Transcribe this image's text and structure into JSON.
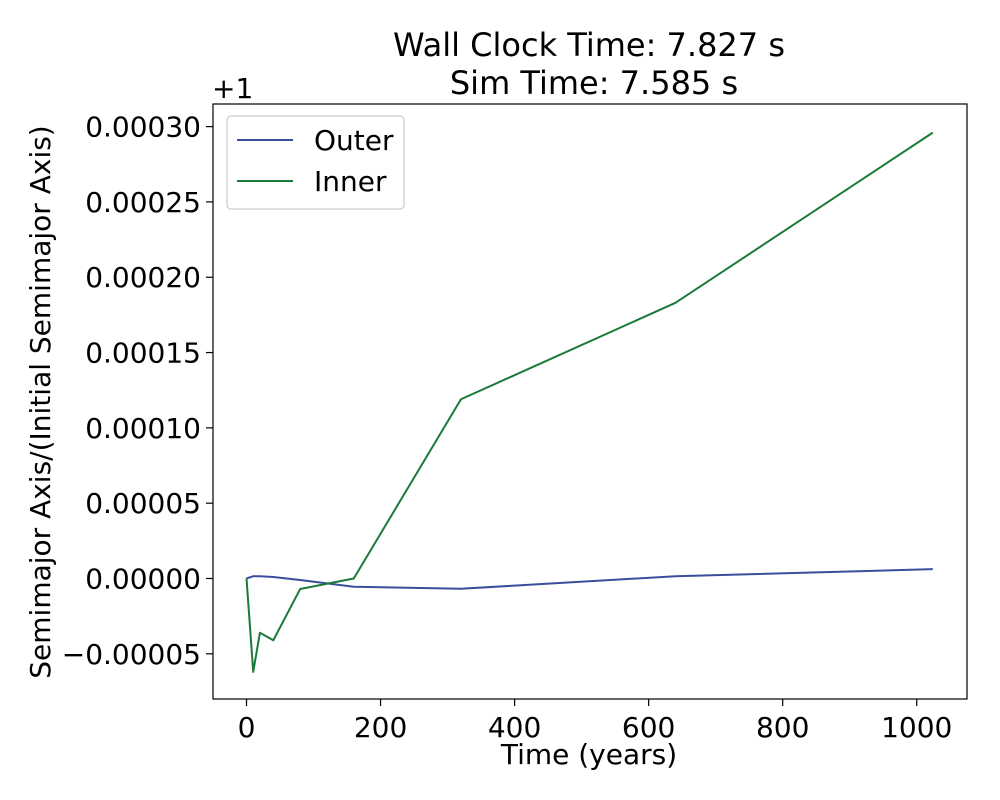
{
  "chart_data": {
    "type": "line",
    "title": [
      "Wall Clock Time: 7.827 s",
      "Sim Time: 7.585 s"
    ],
    "xlabel": "Time (years)",
    "ylabel": "Semimajor Axis/(Initial Semimajor Axis)",
    "y_offset_label": "+1",
    "xlim": [
      -50,
      1075
    ],
    "ylim": [
      -8e-05,
      0.000315
    ],
    "x_ticks": [
      0,
      200,
      400,
      600,
      800,
      1000
    ],
    "x_tick_labels": [
      "0",
      "200",
      "400",
      "600",
      "800",
      "1000"
    ],
    "y_ticks": [
      -5e-05,
      0.0,
      5e-05,
      0.0001,
      0.00015,
      0.0002,
      0.00025,
      0.0003
    ],
    "y_tick_labels": [
      "−0.00005",
      "0.00000",
      "0.00005",
      "0.00010",
      "0.00015",
      "0.00020",
      "0.00025",
      "0.00030"
    ],
    "grid": false,
    "legend_position": "top-left",
    "series": [
      {
        "name": "Outer",
        "color": "#3a4e9c",
        "x": [
          0,
          10,
          20,
          40,
          80,
          160,
          320,
          640,
          1024
        ],
        "y": [
          0.0,
          1.5e-06,
          1.5e-06,
          1e-06,
          -1e-06,
          -5.5e-06,
          -6.8e-06,
          1.5e-06,
          6.2e-06
        ]
      },
      {
        "name": "Inner",
        "color": "#1a7a3a",
        "x": [
          0,
          10,
          20,
          40,
          80,
          160,
          320,
          640,
          1024
        ],
        "y": [
          0.0,
          -6.2e-05,
          -3.6e-05,
          -4.1e-05,
          -7e-06,
          0.0,
          0.000119,
          0.000183,
          0.000296
        ]
      }
    ]
  }
}
